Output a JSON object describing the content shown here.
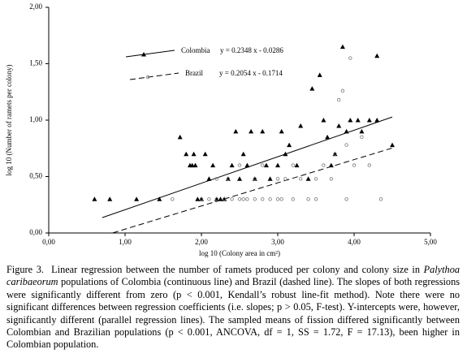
{
  "chart_data": {
    "type": "scatter",
    "xlabel": "log 10 (Colony area in cm²)",
    "ylabel": "log 10 (Number of ramets per colony)",
    "xlim": [
      0,
      5
    ],
    "ylim": [
      0,
      2
    ],
    "xticks": [
      {
        "value": 0,
        "label": "0,00"
      },
      {
        "value": 1,
        "label": "1,00"
      },
      {
        "value": 2,
        "label": "2,00"
      },
      {
        "value": 3,
        "label": "3,00"
      },
      {
        "value": 4,
        "label": "4,00"
      },
      {
        "value": 5,
        "label": "5,00"
      }
    ],
    "yticks": [
      {
        "value": 0,
        "label": "0,00"
      },
      {
        "value": 0.5,
        "label": "0,50"
      },
      {
        "value": 1,
        "label": "1,00"
      },
      {
        "value": 1.5,
        "label": "1,50"
      },
      {
        "value": 2,
        "label": "2,00"
      }
    ],
    "series": [
      {
        "name": "Colombia",
        "marker": "triangle",
        "color": "#000000",
        "line_style": "solid",
        "equation": "y = 0.2348 x - 0.0286",
        "slope": 0.2348,
        "intercept": -0.0286,
        "fit_x": [
          0.7,
          4.5
        ],
        "x": [
          0.6,
          0.8,
          1.15,
          1.45,
          1.72,
          1.8,
          1.85,
          1.88,
          1.9,
          1.92,
          1.95,
          2.0,
          2.05,
          2.1,
          2.15,
          2.2,
          2.25,
          2.3,
          2.35,
          2.4,
          2.45,
          2.5,
          2.55,
          2.6,
          2.65,
          2.7,
          2.8,
          2.85,
          2.9,
          3.0,
          3.05,
          3.1,
          3.15,
          3.25,
          3.3,
          3.4,
          3.45,
          3.55,
          3.6,
          3.65,
          3.7,
          3.75,
          3.8,
          3.85,
          3.9,
          3.95,
          4.05,
          4.1,
          4.2,
          4.3,
          4.3,
          4.5
        ],
        "values": [
          0.3,
          0.3,
          0.3,
          0.3,
          0.85,
          0.7,
          0.6,
          0.6,
          0.7,
          0.6,
          0.3,
          0.3,
          0.7,
          0.48,
          0.6,
          0.3,
          0.3,
          0.3,
          0.48,
          0.6,
          0.9,
          0.48,
          0.7,
          0.6,
          0.9,
          0.48,
          0.9,
          0.6,
          0.48,
          0.6,
          0.9,
          0.7,
          0.78,
          0.6,
          0.95,
          0.48,
          1.28,
          1.4,
          1.0,
          0.85,
          0.6,
          0.7,
          0.95,
          1.65,
          0.9,
          1.0,
          1.0,
          0.9,
          1.0,
          1.57,
          1.0,
          0.78
        ]
      },
      {
        "name": "Brazil",
        "marker": "circle",
        "color": "#777777",
        "line_style": "dashed",
        "equation": "y = 0.2054 x - 0.1714",
        "slope": 0.2054,
        "intercept": -0.1714,
        "fit_x": [
          0.84,
          4.5
        ],
        "x": [
          1.62,
          2.0,
          2.1,
          2.2,
          2.3,
          2.4,
          2.5,
          2.55,
          2.6,
          2.7,
          2.8,
          2.9,
          3.0,
          3.05,
          2.2,
          2.35,
          2.5,
          2.7,
          2.8,
          3.0,
          3.1,
          3.2,
          3.3,
          3.4,
          3.5,
          3.6,
          3.7,
          3.75,
          3.8,
          3.85,
          3.9,
          3.95,
          4.0,
          4.1,
          3.9,
          4.35,
          4.2,
          3.5,
          3.2
        ],
        "values": [
          0.3,
          0.3,
          0.3,
          0.3,
          0.3,
          0.3,
          0.3,
          0.3,
          0.3,
          0.3,
          0.3,
          0.3,
          0.3,
          0.3,
          0.48,
          0.48,
          0.6,
          0.48,
          0.6,
          0.48,
          0.48,
          0.6,
          0.48,
          0.3,
          0.48,
          0.6,
          0.48,
          0.7,
          1.18,
          1.26,
          0.78,
          1.55,
          0.6,
          0.85,
          0.3,
          0.3,
          0.6,
          0.3,
          0.3
        ]
      }
    ]
  },
  "caption": {
    "label": "Figure 3.",
    "before": "Linear regression between the number of ramets produced per colony and colony size in ",
    "species": "Palythoa caribaeorum",
    "after": " populations of Colombia (continuous line) and Brazil (dashed line). The slopes of both regressions were significantly different from zero (p < 0.001, Kendall’s robust line-fit method).  Note there were no significant differences between regression coefficients (i.e. slopes; p > 0.05, F-test). Y-intercepts were, however, significantly different (parallel regression lines). The sampled means of fission differed significantly between Colombian and Brazilian populations (p < 0.001, ANCOVA, df = 1, SS = 1.72, F = 17.13), been higher in Colombian population."
  }
}
